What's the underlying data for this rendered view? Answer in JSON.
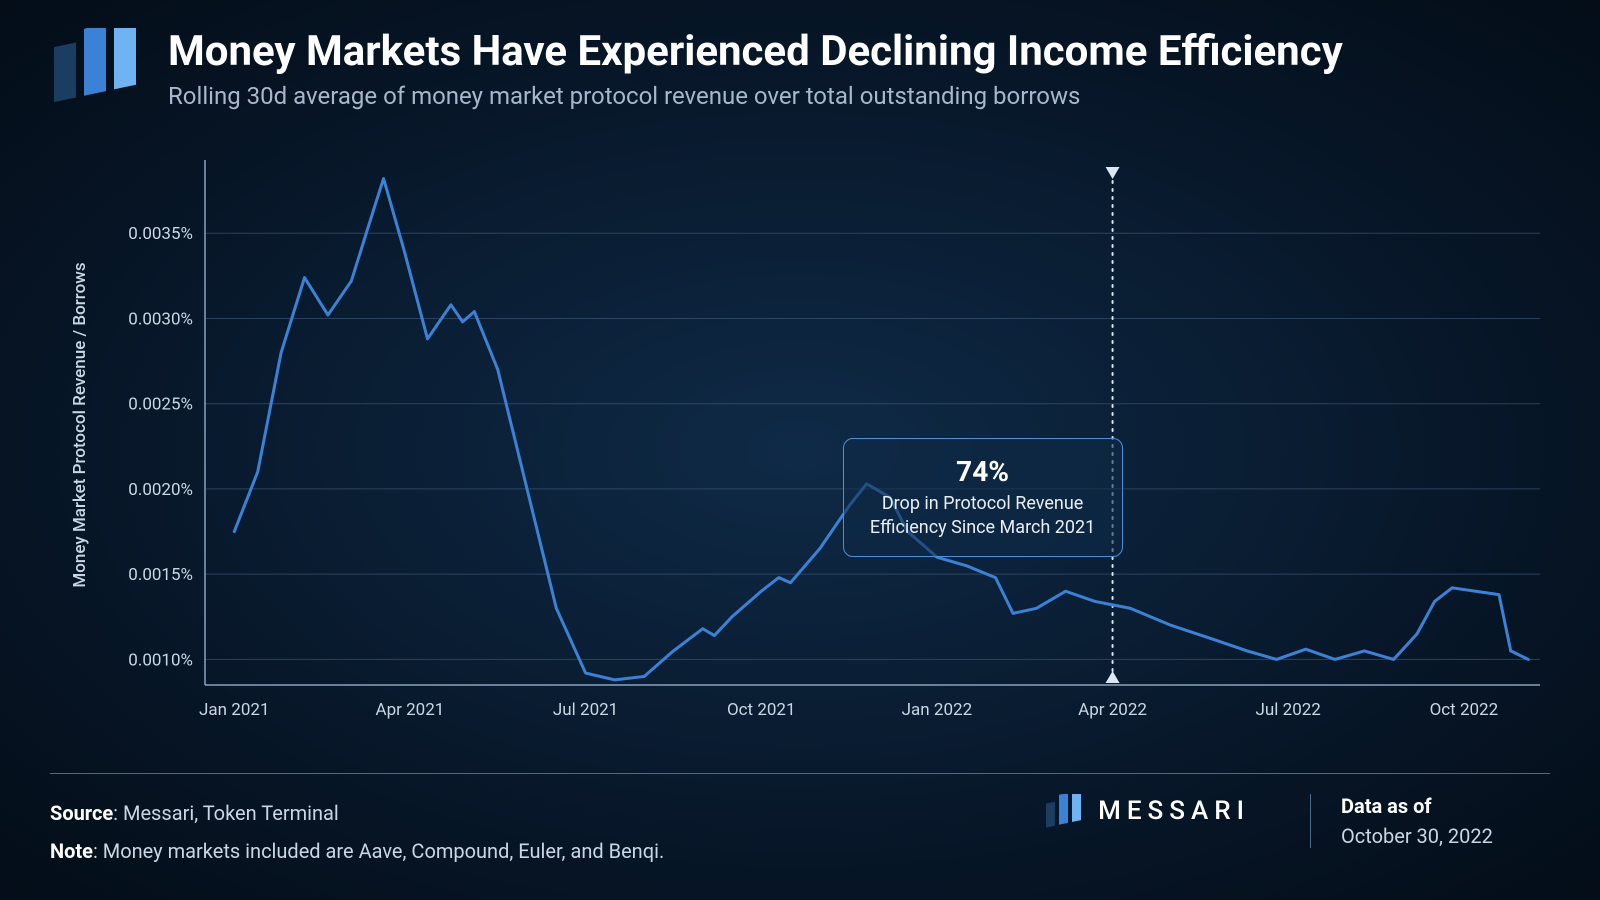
{
  "header": {
    "title": "Money Markets Have Experienced Declining Income Efficiency",
    "subtitle": "Rolling 30d average of money market protocol revenue over total outstanding borrows"
  },
  "chart": {
    "type": "line",
    "y_axis_label": "Money Market Protocol Revenue / Borrows",
    "label_fontsize": 17,
    "tick_fontsize": 17,
    "y_ticks": [
      0.001,
      0.0015,
      0.002,
      0.0025,
      0.003,
      0.0035
    ],
    "y_tick_labels": [
      "0.0010%",
      "0.0015%",
      "0.0020%",
      "0.0025%",
      "0.0030%",
      "0.0035%"
    ],
    "y_min": 0.00085,
    "y_max": 0.0039,
    "x_ticks_idx": [
      0,
      3,
      6,
      9,
      12,
      15,
      18,
      21
    ],
    "x_tick_labels": [
      "Jan 2021",
      "Apr 2021",
      "Jul 2021",
      "Oct 2021",
      "Jan 2022",
      "Apr 2022",
      "Jul 2022",
      "Oct 2022"
    ],
    "x_min": -0.5,
    "x_max": 22.3,
    "line_color": "#3b82d6",
    "line_width": 3,
    "grid_color": "#3a5472",
    "axis_color": "#8aa2bf",
    "text_color": "#c9d6e4",
    "background": "transparent",
    "series": [
      {
        "x": 0.0,
        "y": 0.00175
      },
      {
        "x": 0.4,
        "y": 0.0021
      },
      {
        "x": 0.8,
        "y": 0.0028
      },
      {
        "x": 1.2,
        "y": 0.00324
      },
      {
        "x": 1.6,
        "y": 0.00302
      },
      {
        "x": 2.0,
        "y": 0.00322
      },
      {
        "x": 2.4,
        "y": 0.00366
      },
      {
        "x": 2.55,
        "y": 0.00382
      },
      {
        "x": 2.9,
        "y": 0.0034
      },
      {
        "x": 3.3,
        "y": 0.00288
      },
      {
        "x": 3.7,
        "y": 0.00308
      },
      {
        "x": 3.9,
        "y": 0.00298
      },
      {
        "x": 4.1,
        "y": 0.00304
      },
      {
        "x": 4.5,
        "y": 0.0027
      },
      {
        "x": 5.0,
        "y": 0.002
      },
      {
        "x": 5.5,
        "y": 0.0013
      },
      {
        "x": 6.0,
        "y": 0.00092
      },
      {
        "x": 6.5,
        "y": 0.00088
      },
      {
        "x": 7.0,
        "y": 0.0009
      },
      {
        "x": 7.5,
        "y": 0.00105
      },
      {
        "x": 8.0,
        "y": 0.00118
      },
      {
        "x": 8.2,
        "y": 0.00114
      },
      {
        "x": 8.5,
        "y": 0.00125
      },
      {
        "x": 9.0,
        "y": 0.0014
      },
      {
        "x": 9.3,
        "y": 0.00148
      },
      {
        "x": 9.5,
        "y": 0.00145
      },
      {
        "x": 10.0,
        "y": 0.00165
      },
      {
        "x": 10.5,
        "y": 0.0019
      },
      {
        "x": 10.8,
        "y": 0.00203
      },
      {
        "x": 11.2,
        "y": 0.00195
      },
      {
        "x": 11.5,
        "y": 0.00175
      },
      {
        "x": 12.0,
        "y": 0.0016
      },
      {
        "x": 12.5,
        "y": 0.00155
      },
      {
        "x": 13.0,
        "y": 0.00148
      },
      {
        "x": 13.3,
        "y": 0.00127
      },
      {
        "x": 13.7,
        "y": 0.0013
      },
      {
        "x": 14.2,
        "y": 0.0014
      },
      {
        "x": 14.7,
        "y": 0.00134
      },
      {
        "x": 15.3,
        "y": 0.0013
      },
      {
        "x": 16.0,
        "y": 0.0012
      },
      {
        "x": 16.7,
        "y": 0.00112
      },
      {
        "x": 17.3,
        "y": 0.00105
      },
      {
        "x": 17.8,
        "y": 0.001
      },
      {
        "x": 18.3,
        "y": 0.00106
      },
      {
        "x": 18.8,
        "y": 0.001
      },
      {
        "x": 19.3,
        "y": 0.00105
      },
      {
        "x": 19.8,
        "y": 0.001
      },
      {
        "x": 20.2,
        "y": 0.00115
      },
      {
        "x": 20.5,
        "y": 0.00134
      },
      {
        "x": 20.8,
        "y": 0.00142
      },
      {
        "x": 21.2,
        "y": 0.0014
      },
      {
        "x": 21.6,
        "y": 0.00138
      },
      {
        "x": 21.8,
        "y": 0.00105
      },
      {
        "x": 22.1,
        "y": 0.001
      }
    ],
    "marker_line_x": 15,
    "callout": {
      "headline": "74%",
      "line1": "Drop in Protocol Revenue",
      "line2": "Efficiency Since March 2021"
    }
  },
  "footer": {
    "source_label": "Source",
    "source_value": ": Messari, Token Terminal",
    "note_label": "Note",
    "note_value": ": Money markets included are Aave, Compound, Euler, and Benqi.",
    "brand": "MESSARI",
    "date_label": "Data as of",
    "date_value": "October 30, 2022"
  },
  "colors": {
    "logo_bars": [
      "#1b3d62",
      "#3b82d6",
      "#6fb3f2"
    ]
  }
}
